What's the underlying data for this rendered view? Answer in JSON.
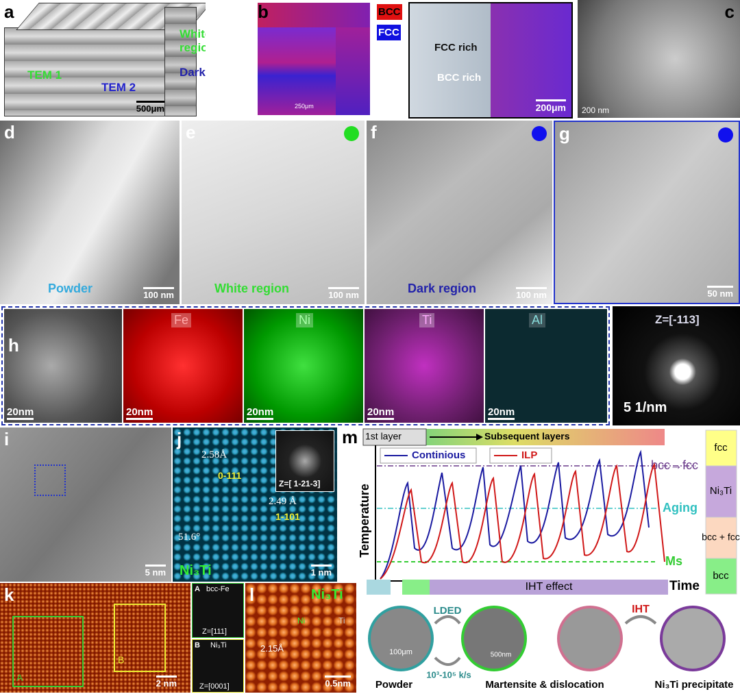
{
  "panels": {
    "a": {
      "label": "a",
      "white": "White region",
      "dark": "Dark region",
      "tem1": "TEM 1",
      "tem2": "TEM 2",
      "scale": "500μm"
    },
    "b": {
      "label": "b",
      "bcc": "BCC",
      "fcc": "FCC",
      "scale": "250μm",
      "fcc_rich": "FCC rich",
      "bcc_rich": "BCC rich",
      "scale2": "200μm"
    },
    "c": {
      "label": "c",
      "scale": "200 nm"
    },
    "d": {
      "label": "d",
      "caption": "Powder",
      "scale": "100 nm"
    },
    "e": {
      "label": "e",
      "caption": "White region",
      "scale": "100 nm"
    },
    "f": {
      "label": "f",
      "caption": "Dark region",
      "scale": "100 nm"
    },
    "g": {
      "label": "g",
      "scale": "50 nm"
    },
    "h": {
      "label": "h",
      "maps": [
        "Fe",
        "Ni",
        "Ti",
        "Al"
      ],
      "scales": [
        "20nm",
        "20nm",
        "20nm",
        "20nm",
        "20nm"
      ],
      "zone": "Z=[-113]",
      "saed_scale": "5 1/nm"
    },
    "i": {
      "label": "i",
      "scale": "5 nm"
    },
    "j": {
      "label": "j",
      "d1": "2.58Å",
      "plane1": "0-111",
      "d2": "2.49 Å",
      "plane2": "1-101",
      "angle": "51.6°",
      "phase": "Ni₃Ti",
      "scale": "1 nm",
      "zone": "Z=[ 1-21-3]"
    },
    "k": {
      "label": "k",
      "box_a": "A",
      "box_b": "B",
      "scale": "2 nm",
      "inset_a": {
        "label": "A",
        "phase": "bcc-Fe",
        "zone": "Z=[111]"
      },
      "inset_b": {
        "label": "B",
        "phase": "Ni₃Ti",
        "zone": "Z=[0001]"
      }
    },
    "l": {
      "label": "l",
      "phase": "Ni₃Ti",
      "ni": "Ni",
      "ti": "Ti",
      "d": "2.15Å",
      "scale": "0.5nm"
    },
    "m": {
      "label": "m",
      "first": "1st layer",
      "subsequent": "Subsequent layers",
      "continuous": "Continious",
      "ilp": "ILP",
      "transform": "bcc→fcc",
      "aging": "Aging",
      "ms": "Ms",
      "ylabel": "Temperature",
      "xlabel": "Time",
      "iht_effect": "IHT effect",
      "phases": [
        "fcc",
        "Ni₃Ti",
        "bcc + fcc",
        "bcc"
      ],
      "stages": [
        "Powder",
        "Martensite & dislocation",
        "Ni₃Ti precipitate"
      ],
      "lded": "LDED",
      "rate": "10³-10⁵ k/s",
      "iht": "IHT",
      "scales": [
        "100μm",
        "500nm"
      ]
    }
  }
}
